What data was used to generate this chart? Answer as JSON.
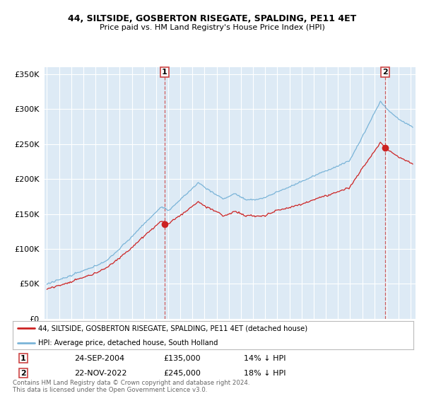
{
  "title": "44, SILTSIDE, GOSBERTON RISEGATE, SPALDING, PE11 4ET",
  "subtitle": "Price paid vs. HM Land Registry's House Price Index (HPI)",
  "hpi_color": "#7ab4d8",
  "price_color": "#cc2222",
  "dashed_color": "#cc4444",
  "fig_bg": "#ffffff",
  "plot_bg": "#ddeaf5",
  "grid_color": "#ffffff",
  "ylim": [
    0,
    360000
  ],
  "yticks": [
    0,
    50000,
    100000,
    150000,
    200000,
    250000,
    300000,
    350000
  ],
  "sale1_year": 2004,
  "sale1_month": 9,
  "sale1_price": 135000,
  "sale1_note": "24-SEP-2004",
  "sale1_pct": "14% ↓ HPI",
  "sale2_year": 2022,
  "sale2_month": 11,
  "sale2_price": 245000,
  "sale2_note": "22-NOV-2022",
  "sale2_pct": "18% ↓ HPI",
  "legend_line1": "44, SILTSIDE, GOSBERTON RISEGATE, SPALDING, PE11 4ET (detached house)",
  "legend_line2": "HPI: Average price, detached house, South Holland",
  "footer": "Contains HM Land Registry data © Crown copyright and database right 2024.\nThis data is licensed under the Open Government Licence v3.0."
}
